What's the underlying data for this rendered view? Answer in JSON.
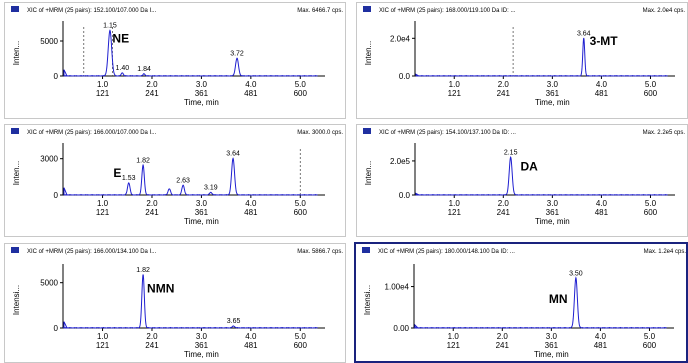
{
  "colors": {
    "trace": "#1f1fd0",
    "axis": "#000000",
    "header_icon": "#1f2fa0",
    "selected_border": "#1a237e"
  },
  "x_tick_labels": [
    "1.0",
    "2.0",
    "3.0",
    "4.0",
    "5.0"
  ],
  "scan_tick_labels": [
    "121",
    "241",
    "361",
    "481",
    "600"
  ],
  "time_label": "Time, min",
  "chart_data": [
    {
      "type": "line",
      "header": "XIC of +MRM (25 pairs): 152.100/107.000 Da I...",
      "max_label": "Max. 6466.7 cps.",
      "compound": "NE",
      "ylabel": "Inten...",
      "y_tick_labels": [
        "5000",
        "0"
      ],
      "y_tick_values": [
        5000,
        0
      ],
      "ylim": [
        0,
        7000
      ],
      "xlim": [
        0.2,
        5.5
      ],
      "dashed_markers": [
        0.62,
        1.2
      ],
      "peak_labels": [
        {
          "x": 1.15,
          "text": "1.15"
        },
        {
          "x": 1.4,
          "text": "1.40"
        },
        {
          "x": 1.84,
          "text": "1.84"
        },
        {
          "x": 3.72,
          "text": "3.72"
        }
      ],
      "peaks": [
        {
          "rt": 1.15,
          "height": 6466.7,
          "width": 0.07
        },
        {
          "rt": 1.4,
          "height": 450,
          "width": 0.04
        },
        {
          "rt": 1.84,
          "height": 300,
          "width": 0.04
        },
        {
          "rt": 3.72,
          "height": 2500,
          "width": 0.06
        }
      ],
      "start_spike": 900
    },
    {
      "type": "line",
      "header": "XIC of +MRM (25 pairs): 168.000/119.100 Da ID: ...",
      "max_label": "Max. 2.0e4 cps.",
      "compound": "3-MT",
      "ylabel": "Inten...",
      "y_tick_labels": [
        "2.0e4",
        "0.0"
      ],
      "y_tick_values": [
        20000,
        0
      ],
      "ylim": [
        0,
        26000
      ],
      "xlim": [
        0.2,
        5.5
      ],
      "dashed_markers": [
        2.2
      ],
      "peak_labels": [
        {
          "x": 3.64,
          "text": "3.64"
        }
      ],
      "peaks": [
        {
          "rt": 3.64,
          "height": 20000,
          "width": 0.04
        }
      ],
      "start_spike": 900
    },
    {
      "type": "line",
      "header": "XIC of +MRM (25 pairs): 166.000/107.000 Da I...",
      "max_label": "Max. 3000.0 cps.",
      "compound": "E",
      "ylabel": "Inten...",
      "y_tick_labels": [
        "3000",
        "0"
      ],
      "y_tick_values": [
        3000,
        0
      ],
      "ylim": [
        0,
        3800
      ],
      "xlim": [
        0.2,
        5.5
      ],
      "dashed_markers": [
        5.0
      ],
      "peak_labels": [
        {
          "x": 1.53,
          "text": "1.53"
        },
        {
          "x": 1.82,
          "text": "1.82"
        },
        {
          "x": 2.63,
          "text": "2.63"
        },
        {
          "x": 3.19,
          "text": "3.19"
        },
        {
          "x": 3.64,
          "text": "3.64"
        }
      ],
      "peaks": [
        {
          "rt": 1.53,
          "height": 1000,
          "width": 0.05
        },
        {
          "rt": 1.82,
          "height": 2450,
          "width": 0.05
        },
        {
          "rt": 2.35,
          "height": 500,
          "width": 0.05
        },
        {
          "rt": 2.63,
          "height": 800,
          "width": 0.05
        },
        {
          "rt": 3.19,
          "height": 200,
          "width": 0.05
        },
        {
          "rt": 3.64,
          "height": 3000,
          "width": 0.06
        }
      ],
      "start_spike": 600
    },
    {
      "type": "line",
      "header": "XIC of +MRM (25 pairs): 154.100/137.100 Da ID: ...",
      "max_label": "Max. 2.2e5 cps.",
      "compound": "DA",
      "ylabel": "Inten...",
      "y_tick_labels": [
        "2.0e5",
        "0.0"
      ],
      "y_tick_values": [
        200000,
        0
      ],
      "ylim": [
        0,
        270000
      ],
      "xlim": [
        0.2,
        5.5
      ],
      "dashed_markers": [],
      "peak_labels": [
        {
          "x": 2.15,
          "text": "2.15"
        }
      ],
      "peaks": [
        {
          "rt": 2.15,
          "height": 220000,
          "width": 0.06
        }
      ],
      "start_spike": 9000
    },
    {
      "type": "line",
      "header": "XIC of +MRM (25 pairs): 166.000/134.100 Da I...",
      "max_label": "Max. 5866.7 cps.",
      "compound": "NMN",
      "ylabel": "Intensi...",
      "y_tick_labels": [
        "5000",
        "0"
      ],
      "y_tick_values": [
        5000,
        0
      ],
      "ylim": [
        0,
        6400
      ],
      "xlim": [
        0.2,
        5.5
      ],
      "dashed_markers": [],
      "peak_labels": [
        {
          "x": 1.82,
          "text": "1.82"
        },
        {
          "x": 3.65,
          "text": "3.65"
        }
      ],
      "peaks": [
        {
          "rt": 1.82,
          "height": 5866.7,
          "width": 0.05
        },
        {
          "rt": 3.65,
          "height": 200,
          "width": 0.05
        }
      ],
      "start_spike": 700
    },
    {
      "type": "line",
      "header": "XIC of +MRM (25 pairs): 180.000/148.100 Da ID: ...",
      "max_label": "Max. 1.2e4 cps.",
      "compound": "MN",
      "ylabel": "Intensi...",
      "y_tick_labels": [
        "1.00e4",
        "0.00"
      ],
      "y_tick_values": [
        10000,
        0
      ],
      "ylim": [
        0,
        14000
      ],
      "xlim": [
        0.2,
        5.5
      ],
      "dashed_markers": [],
      "peak_labels": [
        {
          "x": 3.5,
          "text": "3.50"
        }
      ],
      "peaks": [
        {
          "rt": 3.5,
          "height": 12000,
          "width": 0.06
        }
      ],
      "start_spike": 700
    }
  ]
}
